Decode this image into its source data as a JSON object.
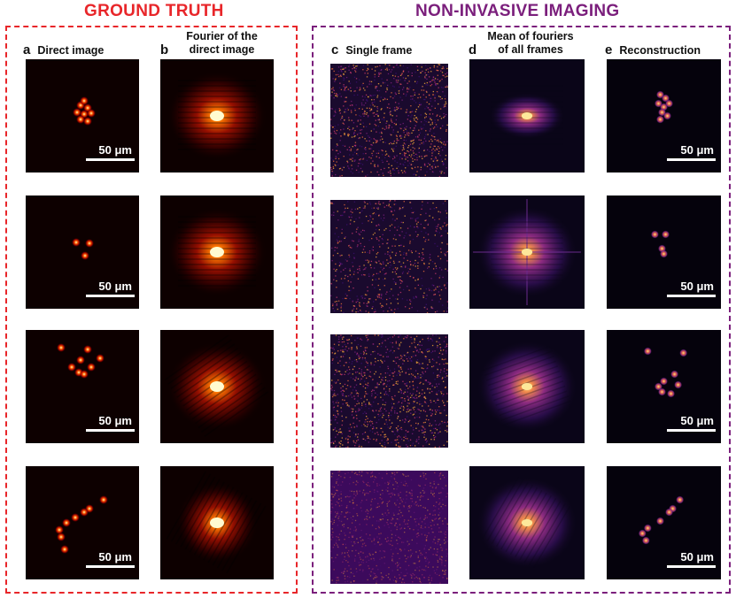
{
  "sections": {
    "ground_truth": "GROUND TRUTH",
    "non_invasive": "NON-INVASIVE IMAGING"
  },
  "columns": {
    "a": {
      "letter": "a",
      "label": "Direct image"
    },
    "b": {
      "letter": "b",
      "label_line1": "Fourier of the",
      "label_line2": "direct image"
    },
    "c": {
      "letter": "c",
      "label": "Single frame"
    },
    "d": {
      "letter": "d",
      "label_line1": "Mean of fouriers",
      "label_line2": "of all frames"
    },
    "e": {
      "letter": "e",
      "label": "Reconstruction"
    }
  },
  "scale_bar_label": "50 μm",
  "colors": {
    "ground_truth_accent": "#e8262a",
    "non_invasive_accent": "#7b1f7c",
    "hot_colormap_bg": "#0d0000",
    "magma_colormap_bg": "#0a0518"
  }
}
